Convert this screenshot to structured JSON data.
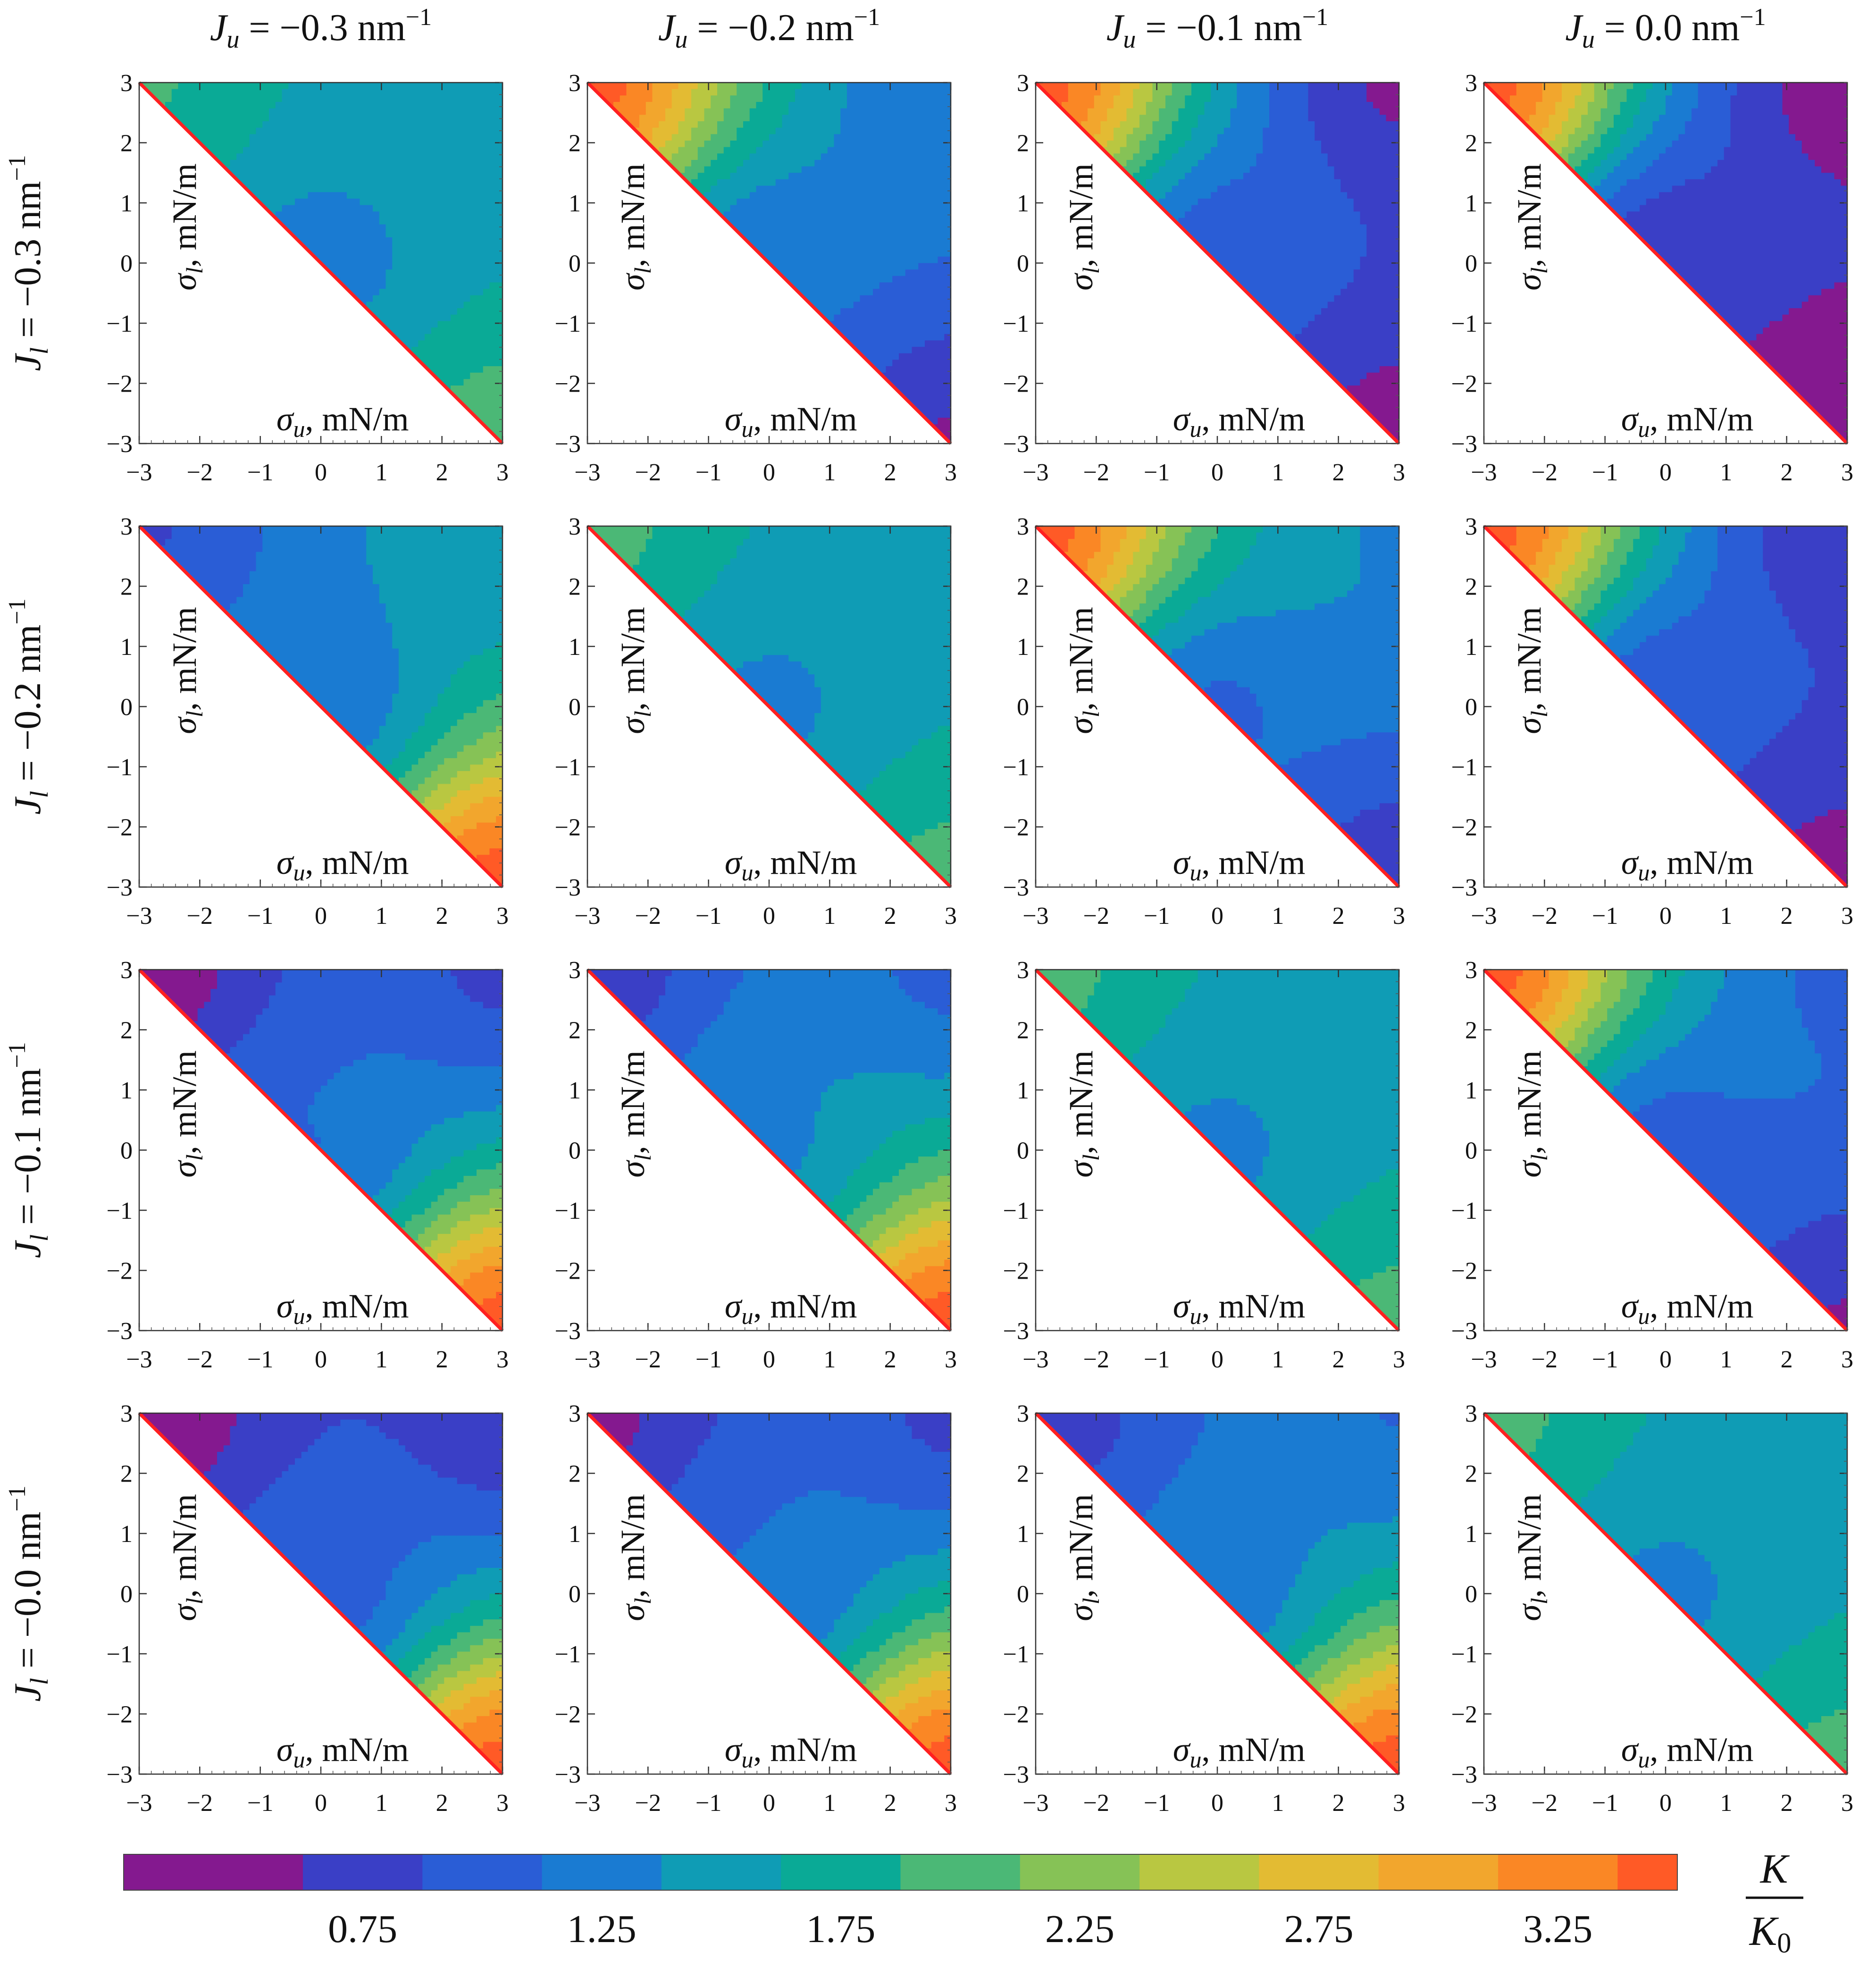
{
  "figure": {
    "column_labels": [
      {
        "var": "J",
        "sub": "u",
        "value": " = −0.3 nm",
        "exp": "−1"
      },
      {
        "var": "J",
        "sub": "u",
        "value": " = −0.2 nm",
        "exp": "−1"
      },
      {
        "var": "J",
        "sub": "u",
        "value": " = −0.1 nm",
        "exp": "−1"
      },
      {
        "var": "J",
        "sub": "u",
        "value": " = 0.0 nm",
        "exp": "−1"
      }
    ],
    "row_labels": [
      {
        "var": "J",
        "sub": "l",
        "value": " = −0.3 nm",
        "exp": "−1"
      },
      {
        "var": "J",
        "sub": "l",
        "value": " = −0.2 nm",
        "exp": "−1"
      },
      {
        "var": "J",
        "sub": "l",
        "value": " = −0.1 nm",
        "exp": "−1"
      },
      {
        "var": "J",
        "sub": "l",
        "value": " = −0.0 nm",
        "exp": "−1"
      }
    ],
    "xlabel": {
      "sym": "σ",
      "sub": "u",
      "rest": ", mN/m"
    },
    "ylabel": {
      "sym": "σ",
      "sub": "l",
      "rest": ", mN/m"
    },
    "colorbar": {
      "label_num": "K",
      "label_den": "K",
      "label_den_sub": "0",
      "tick_labels": [
        "0.75",
        "1.25",
        "1.75",
        "2.25",
        "2.75",
        "3.25"
      ],
      "tick_values": [
        0.75,
        1.25,
        1.75,
        2.25,
        2.75,
        3.25
      ],
      "colors": [
        "#84198f",
        "#3a3fc6",
        "#2a5dd6",
        "#1a7bd2",
        "#0f9cb5",
        "#0aaa96",
        "#4bb876",
        "#86c256",
        "#b9c741",
        "#e3bb33",
        "#f2a62d",
        "#fa8725",
        "#ff5a26",
        "#ff2a22"
      ],
      "boundaries": [
        0.5,
        0.625,
        0.875,
        1.125,
        1.375,
        1.625,
        1.875,
        2.125,
        2.375,
        2.625,
        2.875,
        3.125,
        3.375,
        3.5
      ],
      "range": [
        0.25,
        3.5
      ]
    },
    "boundary_color": "#ff2020"
  },
  "chart_data": {
    "type": "heatmap",
    "grid": "4x4 contour plots",
    "x": {
      "quantity": "σu",
      "unit": "mN/m",
      "range": [
        -3,
        3
      ],
      "ticks": [
        -3,
        -2,
        -1,
        0,
        1,
        2,
        3
      ]
    },
    "y": {
      "quantity": "σl",
      "unit": "mN/m",
      "range": [
        -3,
        3
      ],
      "ticks": [
        -3,
        -2,
        -1,
        0,
        1,
        2,
        3
      ]
    },
    "region": "σl ≥ −σu",
    "z": {
      "quantity": "K/K0"
    },
    "panels": [
      {
        "Ju": -0.3,
        "Jl": -0.3,
        "K_at_u_l": [
          [
            -3,
            3,
            1.9
          ],
          [
            0,
            0,
            1.25
          ],
          [
            3,
            -3,
            2.0
          ],
          [
            3,
            3,
            1.45
          ]
        ]
      },
      {
        "Ju": -0.2,
        "Jl": -0.3,
        "K_at_u_l": [
          [
            -3,
            3,
            3.5
          ],
          [
            0,
            0,
            1.1
          ],
          [
            3,
            -3,
            0.6
          ],
          [
            3,
            3,
            1.15
          ]
        ]
      },
      {
        "Ju": -0.1,
        "Jl": -0.3,
        "K_at_u_l": [
          [
            -3,
            3,
            3.5
          ],
          [
            0,
            0,
            0.9
          ],
          [
            3,
            -3,
            0.5
          ],
          [
            3,
            3,
            0.55
          ]
        ]
      },
      {
        "Ju": 0.0,
        "Jl": -0.3,
        "K_at_u_l": [
          [
            -3,
            3,
            3.5
          ],
          [
            0,
            0,
            0.6
          ],
          [
            3,
            -3,
            0.3
          ],
          [
            3,
            3,
            0.45
          ]
        ]
      },
      {
        "Ju": -0.3,
        "Jl": -0.2,
        "K_at_u_l": [
          [
            -3,
            3,
            0.85
          ],
          [
            0,
            0,
            1.1
          ],
          [
            3,
            -3,
            3.5
          ],
          [
            3,
            3,
            1.45
          ]
        ]
      },
      {
        "Ju": -0.2,
        "Jl": -0.2,
        "K_at_u_l": [
          [
            -3,
            3,
            1.95
          ],
          [
            0,
            0,
            1.3
          ],
          [
            3,
            -3,
            1.95
          ],
          [
            3,
            3,
            1.45
          ]
        ]
      },
      {
        "Ju": -0.1,
        "Jl": -0.2,
        "K_at_u_l": [
          [
            -3,
            3,
            3.5
          ],
          [
            0,
            0,
            1.05
          ],
          [
            3,
            -3,
            0.7
          ],
          [
            3,
            3,
            1.35
          ]
        ]
      },
      {
        "Ju": 0.0,
        "Jl": -0.2,
        "K_at_u_l": [
          [
            -3,
            3,
            3.5
          ],
          [
            0,
            0,
            0.85
          ],
          [
            3,
            -3,
            0.5
          ],
          [
            3,
            3,
            0.6
          ]
        ]
      },
      {
        "Ju": -0.3,
        "Jl": -0.1,
        "K_at_u_l": [
          [
            -3,
            3,
            0.45
          ],
          [
            0,
            0,
            1.1
          ],
          [
            3,
            -3,
            3.5
          ],
          [
            3,
            3,
            0.8
          ]
        ]
      },
      {
        "Ju": -0.2,
        "Jl": -0.1,
        "K_at_u_l": [
          [
            -3,
            3,
            0.7
          ],
          [
            0,
            0,
            1.3
          ],
          [
            3,
            -3,
            3.5
          ],
          [
            3,
            3,
            1.05
          ]
        ]
      },
      {
        "Ju": -0.1,
        "Jl": -0.1,
        "K_at_u_l": [
          [
            -3,
            3,
            1.95
          ],
          [
            0,
            0,
            1.3
          ],
          [
            3,
            -3,
            1.95
          ],
          [
            3,
            3,
            1.45
          ]
        ]
      },
      {
        "Ju": 0.0,
        "Jl": -0.1,
        "K_at_u_l": [
          [
            -3,
            3,
            3.5
          ],
          [
            0,
            0,
            0.95
          ],
          [
            3,
            -3,
            0.6
          ],
          [
            3,
            3,
            1.05
          ]
        ]
      },
      {
        "Ju": -0.3,
        "Jl": 0.0,
        "K_at_u_l": [
          [
            -3,
            3,
            0.4
          ],
          [
            0,
            0,
            0.95
          ],
          [
            3,
            -3,
            3.5
          ],
          [
            3,
            3,
            0.65
          ]
        ]
      },
      {
        "Ju": -0.2,
        "Jl": 0.0,
        "K_at_u_l": [
          [
            -3,
            3,
            0.55
          ],
          [
            0,
            0,
            1.1
          ],
          [
            3,
            -3,
            3.5
          ],
          [
            3,
            3,
            0.8
          ]
        ]
      },
      {
        "Ju": -0.1,
        "Jl": 0.0,
        "K_at_u_l": [
          [
            -3,
            3,
            0.7
          ],
          [
            0,
            0,
            1.15
          ],
          [
            3,
            -3,
            3.5
          ],
          [
            3,
            3,
            1.1
          ]
        ]
      },
      {
        "Ju": 0.0,
        "Jl": 0.0,
        "K_at_u_l": [
          [
            -3,
            3,
            1.95
          ],
          [
            0,
            0,
            1.3
          ],
          [
            3,
            -3,
            1.95
          ],
          [
            3,
            3,
            1.45
          ]
        ]
      }
    ]
  }
}
